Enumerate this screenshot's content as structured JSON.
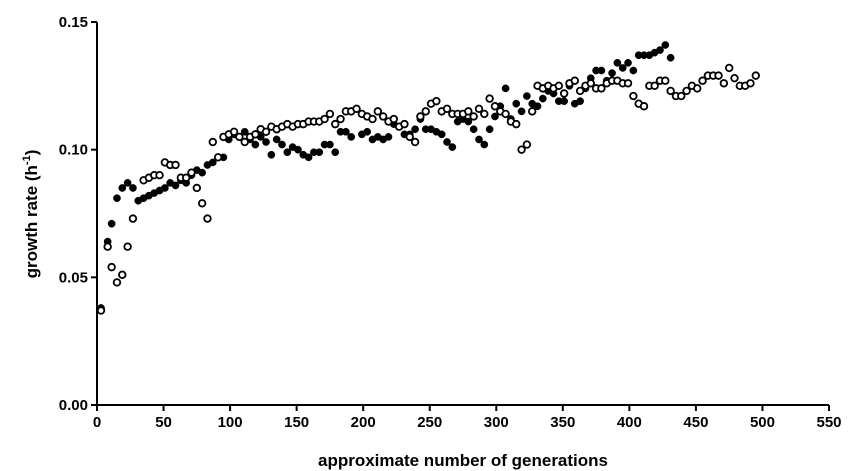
{
  "chart_data": {
    "type": "scatter",
    "xlabel": "approximate number of generations",
    "ylabel": {
      "base": "growth rate (h",
      "superscript": "-1",
      "close": ")"
    },
    "xlim": [
      0,
      550
    ],
    "xticks": [
      0,
      50,
      100,
      150,
      200,
      250,
      300,
      350,
      400,
      450,
      500,
      550
    ],
    "ylim": [
      0,
      0.15
    ],
    "yticks": [
      {
        "value": 0,
        "label": "0.00"
      },
      0.05,
      {
        "value": 0.1,
        "label": "0.10"
      },
      0.15
    ],
    "grid": false,
    "series": [
      {
        "color": "#000000",
        "marker": "filled",
        "x": [
          3,
          8,
          11,
          15,
          19,
          23,
          27,
          31,
          35,
          39,
          43,
          47,
          51,
          55,
          59,
          63,
          67,
          71,
          75,
          79,
          83,
          87,
          91,
          95,
          99,
          103,
          107,
          111,
          115,
          119,
          123,
          127,
          131,
          135,
          139,
          143,
          147,
          151,
          155,
          159,
          163,
          167,
          171,
          175,
          179,
          183,
          187,
          191,
          195,
          199,
          203,
          207,
          211,
          215,
          219,
          223,
          227,
          231,
          235,
          239,
          243,
          247,
          251,
          255,
          259,
          263,
          267,
          271,
          275,
          279,
          283,
          287,
          291,
          295,
          299,
          303,
          307,
          311,
          315,
          319,
          323,
          327,
          331,
          335,
          339,
          343,
          347,
          351,
          355,
          359,
          363,
          367,
          371,
          375,
          379,
          383,
          387,
          391,
          395,
          399,
          403,
          407,
          411,
          415,
          419,
          423,
          427,
          431
        ],
        "values": [
          0.038,
          0.064,
          0.071,
          0.081,
          0.085,
          0.087,
          0.085,
          0.08,
          0.081,
          0.082,
          0.083,
          0.084,
          0.085,
          0.087,
          0.086,
          0.088,
          0.087,
          0.09,
          0.092,
          0.091,
          0.094,
          0.095,
          0.097,
          0.097,
          0.104,
          0.106,
          0.105,
          0.107,
          0.104,
          0.102,
          0.105,
          0.103,
          0.098,
          0.104,
          0.102,
          0.099,
          0.101,
          0.1,
          0.098,
          0.097,
          0.099,
          0.099,
          0.102,
          0.102,
          0.099,
          0.107,
          0.107,
          0.105,
          0.116,
          0.106,
          0.107,
          0.104,
          0.105,
          0.104,
          0.105,
          0.11,
          0.109,
          0.106,
          0.106,
          0.108,
          0.112,
          0.108,
          0.108,
          0.107,
          0.106,
          0.103,
          0.101,
          0.111,
          0.112,
          0.111,
          0.108,
          0.104,
          0.102,
          0.108,
          0.113,
          0.117,
          0.124,
          0.112,
          0.118,
          0.115,
          0.121,
          0.118,
          0.117,
          0.12,
          0.123,
          0.122,
          0.119,
          0.119,
          0.125,
          0.118,
          0.119,
          0.124,
          0.128,
          0.131,
          0.131,
          0.127,
          0.13,
          0.134,
          0.132,
          0.134,
          0.131,
          0.137,
          0.137,
          0.137,
          0.138,
          0.139,
          0.141,
          0.136
        ]
      },
      {
        "color": "#000000",
        "marker": "open",
        "x": [
          3,
          8,
          11,
          15,
          19,
          23,
          27,
          35,
          39,
          43,
          47,
          51,
          55,
          59,
          63,
          67,
          71,
          75,
          79,
          83,
          87,
          91,
          95,
          99,
          103,
          107,
          111,
          115,
          119,
          123,
          127,
          131,
          135,
          139,
          143,
          147,
          151,
          155,
          159,
          163,
          167,
          171,
          175,
          179,
          183,
          187,
          191,
          195,
          199,
          203,
          207,
          211,
          215,
          219,
          223,
          227,
          231,
          235,
          239,
          243,
          247,
          251,
          255,
          259,
          263,
          267,
          271,
          275,
          279,
          283,
          287,
          291,
          295,
          299,
          303,
          307,
          311,
          315,
          319,
          323,
          327,
          331,
          335,
          339,
          343,
          347,
          351,
          355,
          359,
          363,
          367,
          371,
          375,
          379,
          383,
          387,
          391,
          395,
          399,
          403,
          407,
          411,
          415,
          419,
          423,
          427,
          431,
          435,
          439,
          443,
          447,
          451,
          455,
          459,
          463,
          467,
          471,
          475,
          479,
          483,
          487,
          491,
          495
        ],
        "values": [
          0.037,
          0.062,
          0.054,
          0.048,
          0.051,
          0.062,
          0.073,
          0.088,
          0.089,
          0.09,
          0.09,
          0.095,
          0.094,
          0.094,
          0.089,
          0.089,
          0.091,
          0.085,
          0.079,
          0.073,
          0.103,
          0.097,
          0.105,
          0.106,
          0.107,
          0.105,
          0.103,
          0.105,
          0.106,
          0.108,
          0.107,
          0.109,
          0.108,
          0.109,
          0.11,
          0.109,
          0.11,
          0.11,
          0.111,
          0.111,
          0.111,
          0.112,
          0.114,
          0.11,
          0.112,
          0.115,
          0.115,
          0.116,
          0.114,
          0.113,
          0.112,
          0.115,
          0.113,
          0.111,
          0.112,
          0.109,
          0.11,
          0.105,
          0.103,
          0.113,
          0.115,
          0.118,
          0.119,
          0.115,
          0.116,
          0.114,
          0.114,
          0.114,
          0.115,
          0.113,
          0.116,
          0.114,
          0.12,
          0.117,
          0.115,
          0.114,
          0.111,
          0.11,
          0.1,
          0.102,
          0.115,
          0.125,
          0.124,
          0.125,
          0.124,
          0.125,
          0.122,
          0.126,
          0.127,
          0.123,
          0.125,
          0.126,
          0.124,
          0.124,
          0.126,
          0.127,
          0.127,
          0.126,
          0.126,
          0.121,
          0.118,
          0.117,
          0.125,
          0.125,
          0.127,
          0.127,
          0.123,
          0.121,
          0.121,
          0.123,
          0.125,
          0.124,
          0.127,
          0.129,
          0.129,
          0.129,
          0.126,
          0.132,
          0.128,
          0.125,
          0.125,
          0.126,
          0.129
        ]
      }
    ]
  }
}
